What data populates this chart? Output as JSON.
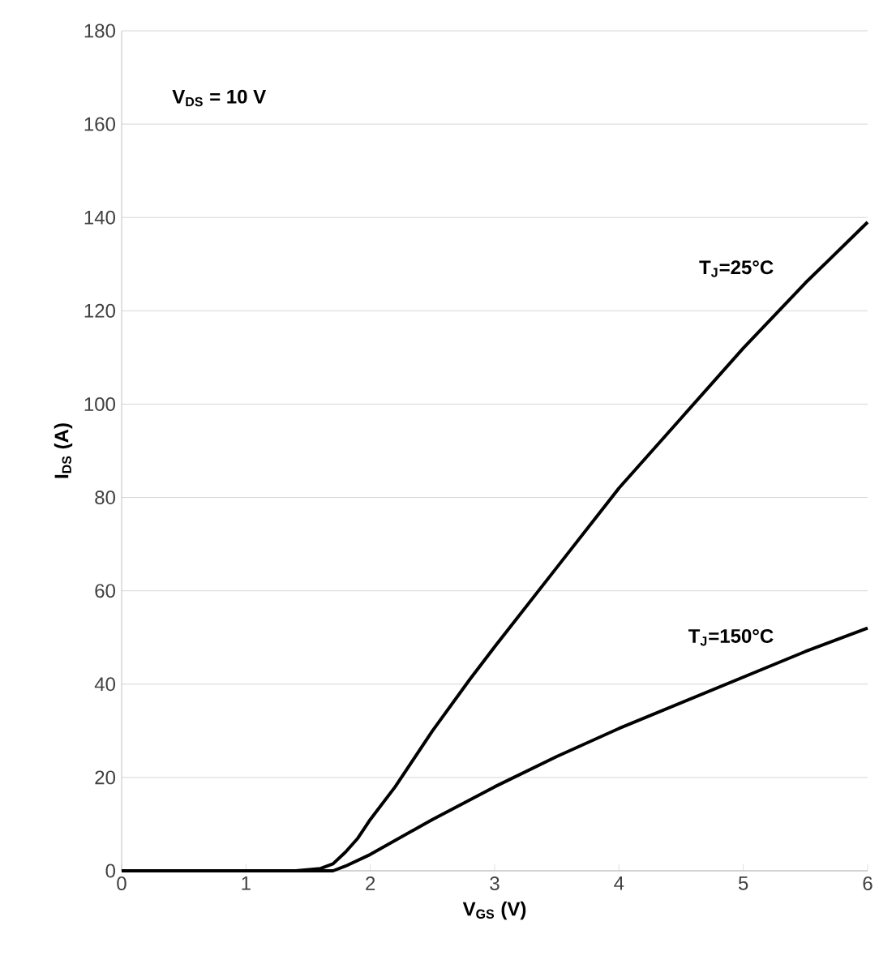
{
  "chart_data": {
    "type": "line",
    "xlabel": "V$_{GS}$ (V)",
    "ylabel": "I$_{DS}$ (A)",
    "annotations": [
      "V$_{DS}$ = 10 V"
    ],
    "xlim": [
      0,
      6
    ],
    "ylim": [
      0,
      180
    ],
    "xticks": [
      0,
      1,
      2,
      3,
      4,
      5,
      6
    ],
    "yticks": [
      0,
      20,
      40,
      60,
      80,
      100,
      120,
      140,
      160,
      180
    ],
    "grid": "y",
    "marker": "none",
    "line_style": "solid",
    "series": [
      {
        "name": "T$_{J}$=25°C",
        "color": "#000000",
        "x": [
          0,
          1,
          1.4,
          1.6,
          1.7,
          1.8,
          1.9,
          2.0,
          2.2,
          2.5,
          2.8,
          3.0,
          3.5,
          4.0,
          4.5,
          5.0,
          5.5,
          6.0
        ],
        "values": [
          0,
          0,
          0,
          0.5,
          1.5,
          4,
          7,
          11,
          18,
          30,
          41,
          48,
          65,
          82,
          97,
          112,
          126,
          139
        ]
      },
      {
        "name": "T$_{J}$=150°C",
        "color": "#000000",
        "x": [
          0,
          1,
          1.5,
          1.7,
          1.8,
          2.0,
          2.5,
          3.0,
          3.5,
          4.0,
          4.5,
          5.0,
          5.5,
          6.0
        ],
        "values": [
          0,
          0,
          0,
          0,
          1,
          3.5,
          11,
          18,
          24.5,
          30.5,
          36,
          41.5,
          47,
          52
        ]
      }
    ]
  }
}
